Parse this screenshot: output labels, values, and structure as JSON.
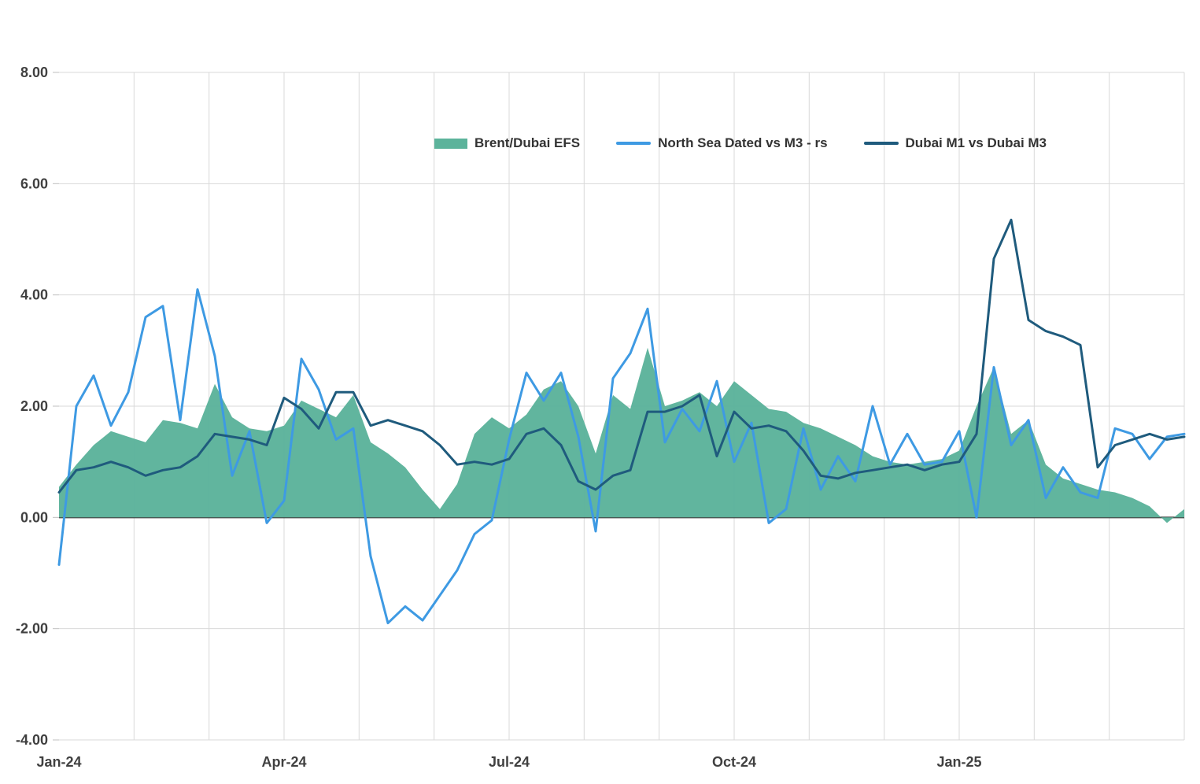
{
  "chart_data": {
    "type": "area",
    "title": "",
    "legend_position": "top-center",
    "x_axis": {
      "unit": "week",
      "months_total": 15,
      "start_label": "Jan-24"
    },
    "ylim": [
      -4,
      8
    ],
    "grid": {
      "vline_color": "#D9D9D9",
      "hline_color": "#D9D9D9",
      "zero_line_color": "#3F3F3F",
      "tick_color": "#BFBFBF"
    },
    "xticks": [
      {
        "label": "Jan-24",
        "month": 0
      },
      {
        "label": "Apr-24",
        "month": 3
      },
      {
        "label": "Jul-24",
        "month": 6
      },
      {
        "label": "Oct-24",
        "month": 9
      },
      {
        "label": "Jan-25",
        "month": 12
      }
    ],
    "yticks": [
      {
        "label": "8.00",
        "value": 8
      },
      {
        "label": "6.00",
        "value": 6
      },
      {
        "label": "4.00",
        "value": 4
      },
      {
        "label": "2.00",
        "value": 2
      },
      {
        "label": "0.00",
        "value": 0
      },
      {
        "label": "-2.00",
        "value": -2
      },
      {
        "label": "-4.00",
        "value": -4
      }
    ],
    "series": [
      {
        "name": "Brent/Dubai EFS",
        "type": "area",
        "color": "#5CB39B",
        "values": [
          0.55,
          0.95,
          1.3,
          1.55,
          1.45,
          1.35,
          1.75,
          1.7,
          1.6,
          2.4,
          1.8,
          1.6,
          1.55,
          1.65,
          2.1,
          1.95,
          1.8,
          2.2,
          1.35,
          1.15,
          0.9,
          0.5,
          0.15,
          0.6,
          1.5,
          1.8,
          1.6,
          1.85,
          2.3,
          2.45,
          2.0,
          1.15,
          2.2,
          1.95,
          3.05,
          2.0,
          2.1,
          2.25,
          2.0,
          2.45,
          2.2,
          1.95,
          1.9,
          1.7,
          1.6,
          1.45,
          1.3,
          1.1,
          1.0,
          0.95,
          1.0,
          1.05,
          1.2,
          2.0,
          2.7,
          1.5,
          1.75,
          0.95,
          0.7,
          0.6,
          0.5,
          0.45,
          0.35,
          0.2,
          -0.1,
          0.15
        ]
      },
      {
        "name": "North Sea Dated vs M3 - rs",
        "type": "line",
        "color": "#3E9AE3",
        "values": [
          -0.85,
          2.0,
          2.55,
          1.65,
          2.25,
          3.6,
          3.8,
          1.75,
          4.1,
          2.9,
          0.75,
          1.55,
          -0.1,
          0.3,
          2.85,
          2.3,
          1.4,
          1.6,
          -0.7,
          -1.9,
          -1.6,
          -1.85,
          -1.4,
          -0.95,
          -0.3,
          -0.05,
          1.4,
          2.6,
          2.1,
          2.6,
          1.45,
          -0.25,
          2.5,
          2.95,
          3.75,
          1.35,
          1.95,
          1.55,
          2.45,
          1.0,
          1.7,
          -0.1,
          0.15,
          1.6,
          0.5,
          1.1,
          0.65,
          2.0,
          0.95,
          1.5,
          0.95,
          1.0,
          1.55,
          0.0,
          2.7,
          1.3,
          1.75,
          0.35,
          0.9,
          0.45,
          0.35,
          1.6,
          1.5,
          1.05,
          1.45,
          1.5
        ]
      },
      {
        "name": "Dubai M1 vs Dubai M3",
        "type": "line",
        "color": "#1F5B7D",
        "values": [
          0.45,
          0.85,
          0.9,
          1.0,
          0.9,
          0.75,
          0.85,
          0.9,
          1.1,
          1.5,
          1.45,
          1.4,
          1.3,
          2.15,
          1.95,
          1.6,
          2.25,
          2.25,
          1.65,
          1.75,
          1.65,
          1.55,
          1.3,
          0.95,
          1.0,
          0.95,
          1.05,
          1.5,
          1.6,
          1.3,
          0.65,
          0.5,
          0.75,
          0.85,
          1.9,
          1.9,
          2.0,
          2.2,
          1.1,
          1.9,
          1.6,
          1.65,
          1.55,
          1.2,
          0.75,
          0.7,
          0.8,
          0.85,
          0.9,
          0.95,
          0.85,
          0.95,
          1.0,
          1.5,
          4.65,
          5.35,
          3.55,
          3.35,
          3.25,
          3.1,
          0.9,
          1.3,
          1.4,
          1.5,
          1.4,
          1.45
        ]
      }
    ]
  }
}
